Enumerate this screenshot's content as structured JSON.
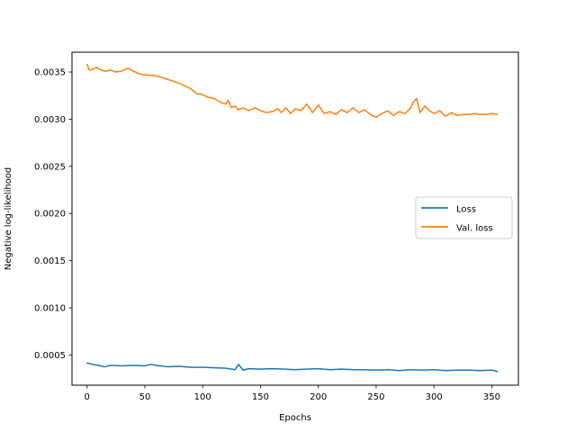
{
  "chart_data": {
    "type": "line",
    "xlabel": "Epochs",
    "ylabel": "Negative log-likelihood",
    "xlim": [
      -13,
      373
    ],
    "ylim": [
      0.00018,
      0.00371
    ],
    "xticks": [
      0,
      50,
      100,
      150,
      200,
      250,
      300,
      350
    ],
    "yticks": [
      0.0005,
      0.001,
      0.0015,
      0.002,
      0.0025,
      0.003,
      0.0035
    ],
    "xtick_labels": [
      "0",
      "50",
      "100",
      "150",
      "200",
      "250",
      "300",
      "350"
    ],
    "ytick_labels": [
      "0.0005",
      "0.0010",
      "0.0015",
      "0.0020",
      "0.0025",
      "0.0030",
      "0.0035"
    ],
    "grid": false,
    "legend_position": "center-right",
    "series": [
      {
        "name": "Loss",
        "color": "#1f77b4",
        "x": [
          0,
          5,
          10,
          15,
          20,
          30,
          40,
          50,
          55,
          60,
          70,
          80,
          90,
          100,
          110,
          120,
          128,
          131,
          135,
          140,
          150,
          160,
          170,
          180,
          190,
          200,
          210,
          220,
          230,
          240,
          250,
          260,
          270,
          280,
          290,
          300,
          310,
          320,
          330,
          340,
          350,
          355
        ],
        "values": [
          0.000415,
          0.0004,
          0.00039,
          0.000375,
          0.00039,
          0.000385,
          0.00039,
          0.000385,
          0.0004,
          0.00039,
          0.000375,
          0.00038,
          0.00037,
          0.00037,
          0.000365,
          0.00036,
          0.000345,
          0.0004,
          0.00034,
          0.000355,
          0.00035,
          0.000355,
          0.00035,
          0.000345,
          0.00035,
          0.000355,
          0.000345,
          0.00035,
          0.000345,
          0.000345,
          0.00034,
          0.000345,
          0.000335,
          0.000345,
          0.00034,
          0.000345,
          0.000335,
          0.00034,
          0.00034,
          0.000335,
          0.00034,
          0.000325
        ]
      },
      {
        "name": "Val. loss",
        "color": "#ff7f0e",
        "x": [
          0,
          2,
          5,
          8,
          12,
          16,
          20,
          25,
          30,
          35,
          40,
          45,
          50,
          60,
          70,
          80,
          90,
          95,
          100,
          105,
          110,
          115,
          120,
          122,
          125,
          128,
          131,
          135,
          140,
          145,
          150,
          155,
          160,
          165,
          168,
          172,
          176,
          180,
          185,
          190,
          195,
          200,
          205,
          210,
          215,
          220,
          225,
          230,
          235,
          240,
          245,
          250,
          255,
          260,
          265,
          270,
          275,
          280,
          282,
          285,
          288,
          292,
          296,
          300,
          305,
          310,
          315,
          320,
          325,
          330,
          335,
          340,
          345,
          350,
          355
        ],
        "values": [
          0.00358,
          0.00352,
          0.00353,
          0.00355,
          0.00352,
          0.00351,
          0.00352,
          0.0035,
          0.00351,
          0.00354,
          0.00351,
          0.00348,
          0.00347,
          0.00346,
          0.00342,
          0.00338,
          0.00332,
          0.00327,
          0.00326,
          0.00323,
          0.00322,
          0.00318,
          0.00316,
          0.0032,
          0.00312,
          0.00314,
          0.0031,
          0.00312,
          0.00309,
          0.00312,
          0.00309,
          0.00307,
          0.00308,
          0.00311,
          0.00307,
          0.00312,
          0.00306,
          0.00311,
          0.00309,
          0.00316,
          0.00307,
          0.00315,
          0.00306,
          0.00308,
          0.00305,
          0.0031,
          0.00307,
          0.00312,
          0.00307,
          0.0031,
          0.00305,
          0.00302,
          0.00306,
          0.00309,
          0.00304,
          0.00308,
          0.00306,
          0.00312,
          0.00318,
          0.00322,
          0.00307,
          0.00314,
          0.00309,
          0.00306,
          0.00309,
          0.00303,
          0.00307,
          0.00304,
          0.00305,
          0.00305,
          0.00306,
          0.00305,
          0.00305,
          0.00306,
          0.00305
        ]
      }
    ]
  }
}
